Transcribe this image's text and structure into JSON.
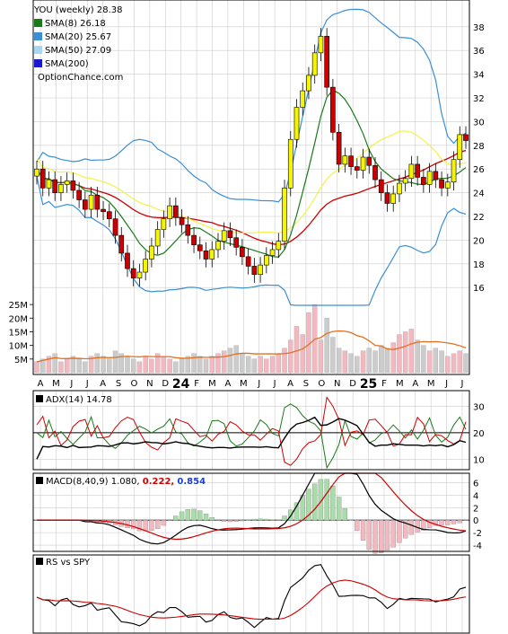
{
  "chart_data": [
    {
      "type": "candlestick",
      "title": "YOU (weekly) 28.38",
      "watermark": "OptionChance.com",
      "legend": [
        {
          "label": "SMA(8) 26.18",
          "color": "#1a7a1a"
        },
        {
          "label": "SMA(20) 25.67",
          "color": "#3a8fd6"
        },
        {
          "label": "SMA(50) 27.09",
          "color": "#a8d8f0"
        },
        {
          "label": "SMA(200)",
          "color": "#1a1acc"
        }
      ],
      "y_ticks": [
        16,
        18,
        20,
        22,
        24,
        26,
        28,
        30,
        32,
        34,
        36,
        38
      ],
      "ylim": [
        14.5,
        39.5
      ],
      "volume_ticks": [
        "5M",
        "10M",
        "15M",
        "20M",
        "25M"
      ],
      "volume_max_m": 28,
      "x_labels": [
        "A",
        "M",
        "J",
        "J",
        "A",
        "S",
        "O",
        "N",
        "D",
        "24",
        "F",
        "M",
        "A",
        "M",
        "J",
        "J",
        "A",
        "S",
        "O",
        "N",
        "D",
        "25",
        "F",
        "M",
        "A",
        "M",
        "J",
        "J"
      ],
      "closes": [
        26.0,
        24.4,
        25.1,
        24.0,
        24.7,
        25.0,
        24.2,
        23.4,
        22.6,
        23.8,
        22.6,
        22.4,
        21.8,
        20.4,
        18.9,
        17.6,
        16.8,
        17.3,
        18.4,
        19.5,
        20.9,
        21.8,
        22.9,
        21.9,
        21.3,
        20.4,
        19.6,
        19.1,
        18.4,
        19.2,
        19.9,
        20.8,
        20.2,
        19.4,
        18.6,
        17.8,
        17.1,
        17.9,
        18.7,
        19.2,
        19.9,
        24.4,
        28.5,
        31.2,
        32.6,
        33.9,
        35.8,
        37.2,
        32.9,
        29.1,
        26.4,
        27.1,
        26.2,
        25.9,
        27.0,
        26.3,
        25.1,
        24.0,
        23.1,
        23.9,
        24.8,
        25.2,
        26.4,
        25.3,
        24.7,
        25.8,
        25.1,
        24.4,
        24.9,
        26.8,
        28.9,
        28.4
      ],
      "volumes_m": [
        4,
        5,
        6,
        7,
        4,
        5,
        6,
        5,
        4,
        6,
        7,
        6,
        5,
        8,
        7,
        6,
        5,
        4,
        6,
        5,
        7,
        6,
        5,
        4,
        5,
        6,
        7,
        6,
        5,
        6,
        7,
        8,
        9,
        10,
        7,
        6,
        5,
        6,
        5,
        6,
        7,
        9,
        12,
        17,
        14,
        22,
        25,
        12,
        20,
        13,
        9,
        8,
        7,
        6,
        8,
        9,
        8,
        10,
        9,
        11,
        14,
        15,
        16,
        12,
        10,
        8,
        9,
        8,
        6,
        7,
        8,
        7
      ]
    },
    {
      "type": "line",
      "title": "ADX(14) 14.78",
      "y_ticks": [
        10,
        20,
        30
      ],
      "ylim": [
        6,
        36
      ]
    },
    {
      "type": "line",
      "title_prefix": "MACD(8,40,9) 1.080,",
      "macd_value": "0.222,",
      "signal_value": "0.854",
      "macd_color": "#cc0000",
      "signal_color": "#1a3fcc",
      "y_ticks": [
        -4,
        -2,
        0,
        2,
        4,
        6
      ],
      "ylim": [
        -5,
        7.5
      ]
    },
    {
      "type": "line",
      "title": "RS vs SPY"
    }
  ],
  "colors": {
    "up": "#f5f500",
    "down": "#cc0000",
    "wick": "#000000",
    "grid": "#cccccc",
    "sma8": "#1a7a1a",
    "sma20": "#3a8fd6",
    "sma50": "#cc0000",
    "bollinger": "#f2f24a",
    "volume_up": "#f4b8c0",
    "volume_down": "#cccccc",
    "volume_ma": "#e07020",
    "adx": "#000000",
    "di_plus": "#1a7a1a",
    "di_minus": "#cc0000"
  }
}
